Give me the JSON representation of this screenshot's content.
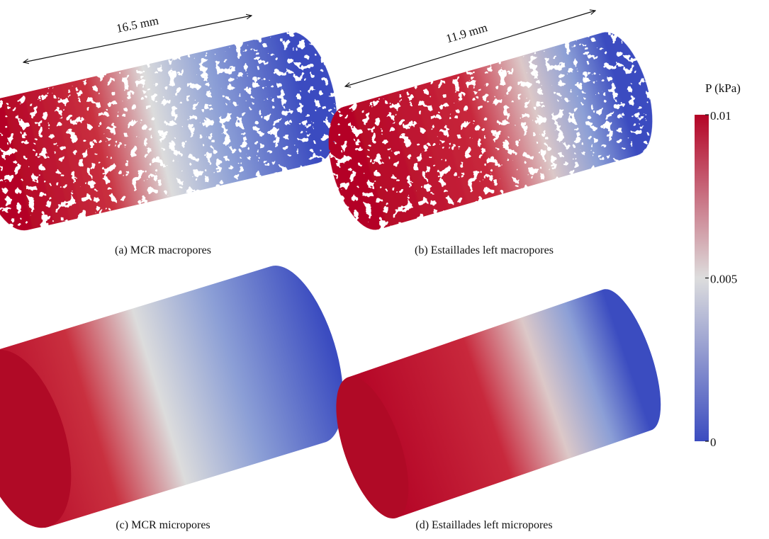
{
  "panels": [
    {
      "caption": "(a) MCR macropores",
      "dimension": "16.5 mm"
    },
    {
      "caption": "(b) Estaillades left macropores",
      "dimension": "11.9 mm"
    },
    {
      "caption": "(c) MCR micropores"
    },
    {
      "caption": "(d) Estaillades left micropores"
    }
  ],
  "colorbar": {
    "title": "P (kPa)",
    "lim": [
      0,
      0.01
    ],
    "ticks": [
      0,
      0.005,
      0.01
    ]
  }
}
